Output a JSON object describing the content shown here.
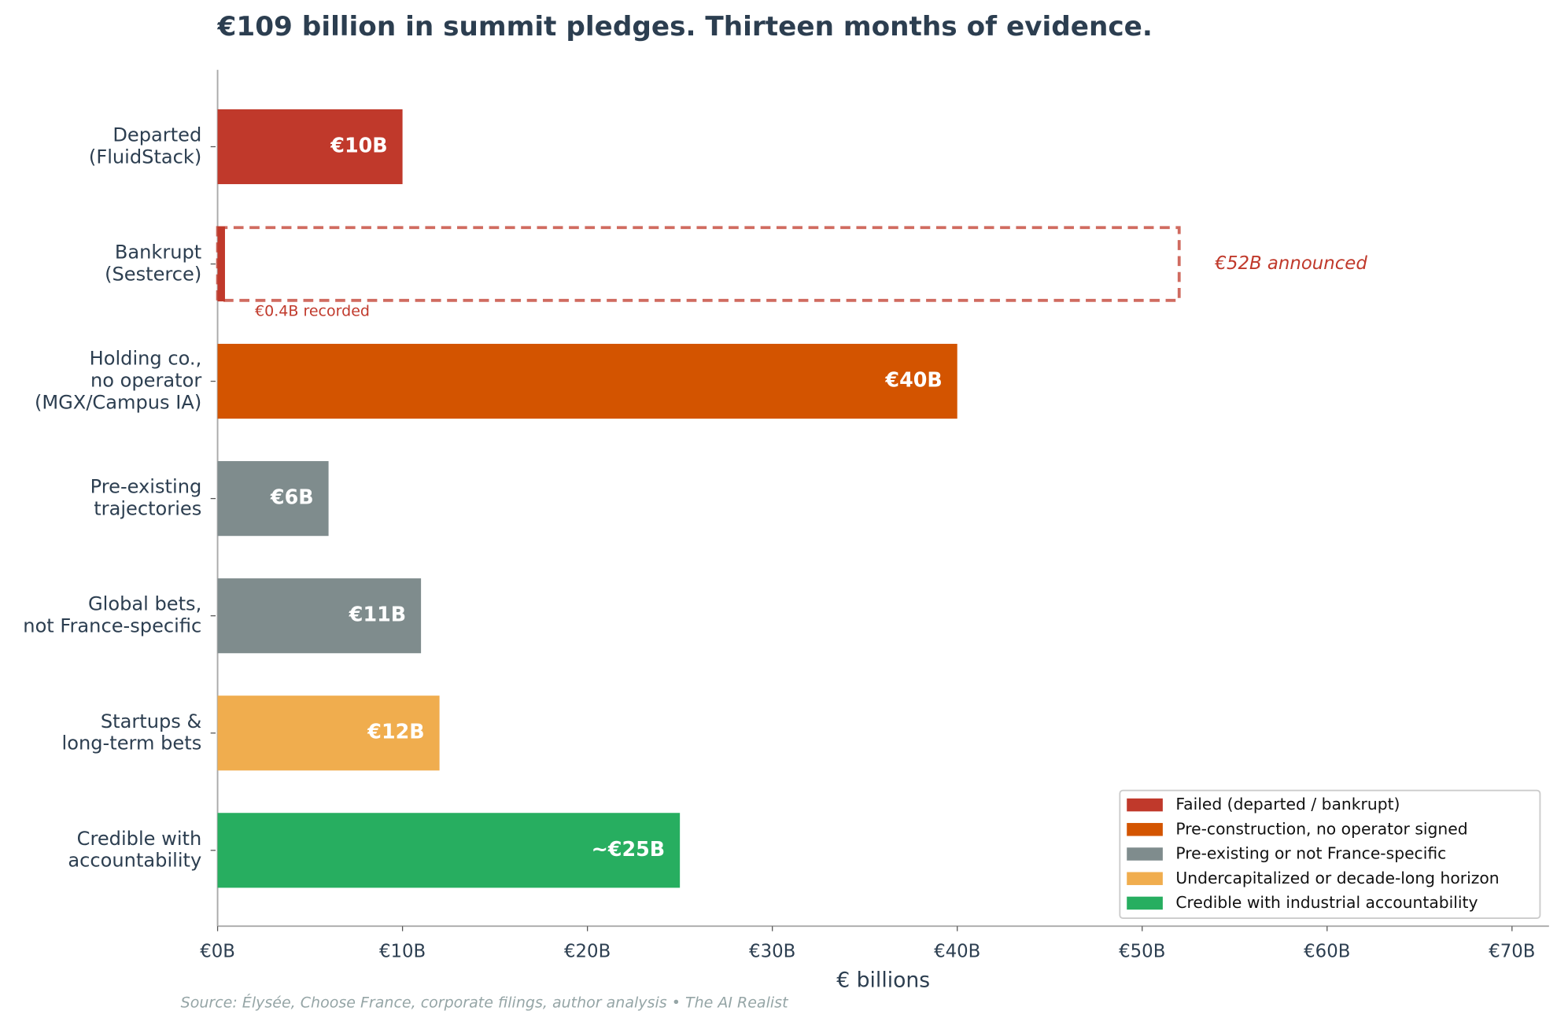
{
  "chart_data": {
    "type": "bar",
    "orientation": "horizontal",
    "title": "€109 billion in summit pledges. Thirteen months of evidence.",
    "xlabel": "€ billions",
    "source": "Source: Élysée, Choose France, corporate filings, author analysis  •  The AI Realist",
    "categories": [
      "Departed\n(FluidStack)",
      "Bankrupt\n(Sesterce)",
      "Holding co.,\nno operator\n(MGX/Campus IA)",
      "Pre-existing\ntrajectories",
      "Global bets,\nnot France-specific",
      "Startups &\nlong-term bets",
      "Credible with\naccountability"
    ],
    "values": [
      10,
      0.4,
      40,
      6,
      11,
      12,
      25
    ],
    "value_labels": [
      "€10B",
      "€0.4B recorded",
      "€40B",
      "€6B",
      "€11B",
      "€12B",
      "~€25B"
    ],
    "colors": [
      "#c0392b",
      "#c0392b",
      "#d35400",
      "#7f8c8d",
      "#7f8c8d",
      "#f0ad4e",
      "#27ae60"
    ],
    "annotations": [
      {
        "category": 1,
        "value": 52,
        "text": "€52B announced",
        "color": "#c0392b"
      }
    ],
    "xlim": [
      0,
      72
    ],
    "xticks": [
      {
        "value": 0,
        "label": "€0B"
      },
      {
        "value": 10,
        "label": "€10B"
      },
      {
        "value": 20,
        "label": "€20B"
      },
      {
        "value": 30,
        "label": "€30B"
      },
      {
        "value": 40,
        "label": "€40B"
      },
      {
        "value": 50,
        "label": "€50B"
      },
      {
        "value": 60,
        "label": "€60B"
      },
      {
        "value": 70,
        "label": "€70B"
      }
    ],
    "legend": {
      "position": "lower right",
      "entries": [
        {
          "name": "Failed (departed / bankrupt)",
          "color": "#c0392b"
        },
        {
          "name": "Pre-construction, no operator signed",
          "color": "#d35400"
        },
        {
          "name": "Pre-existing or not France-specific",
          "color": "#7f8c8d"
        },
        {
          "name": "Undercapitalized or decade-long horizon",
          "color": "#f0ad4e"
        },
        {
          "name": "Credible with industrial accountability",
          "color": "#27ae60"
        }
      ]
    }
  }
}
